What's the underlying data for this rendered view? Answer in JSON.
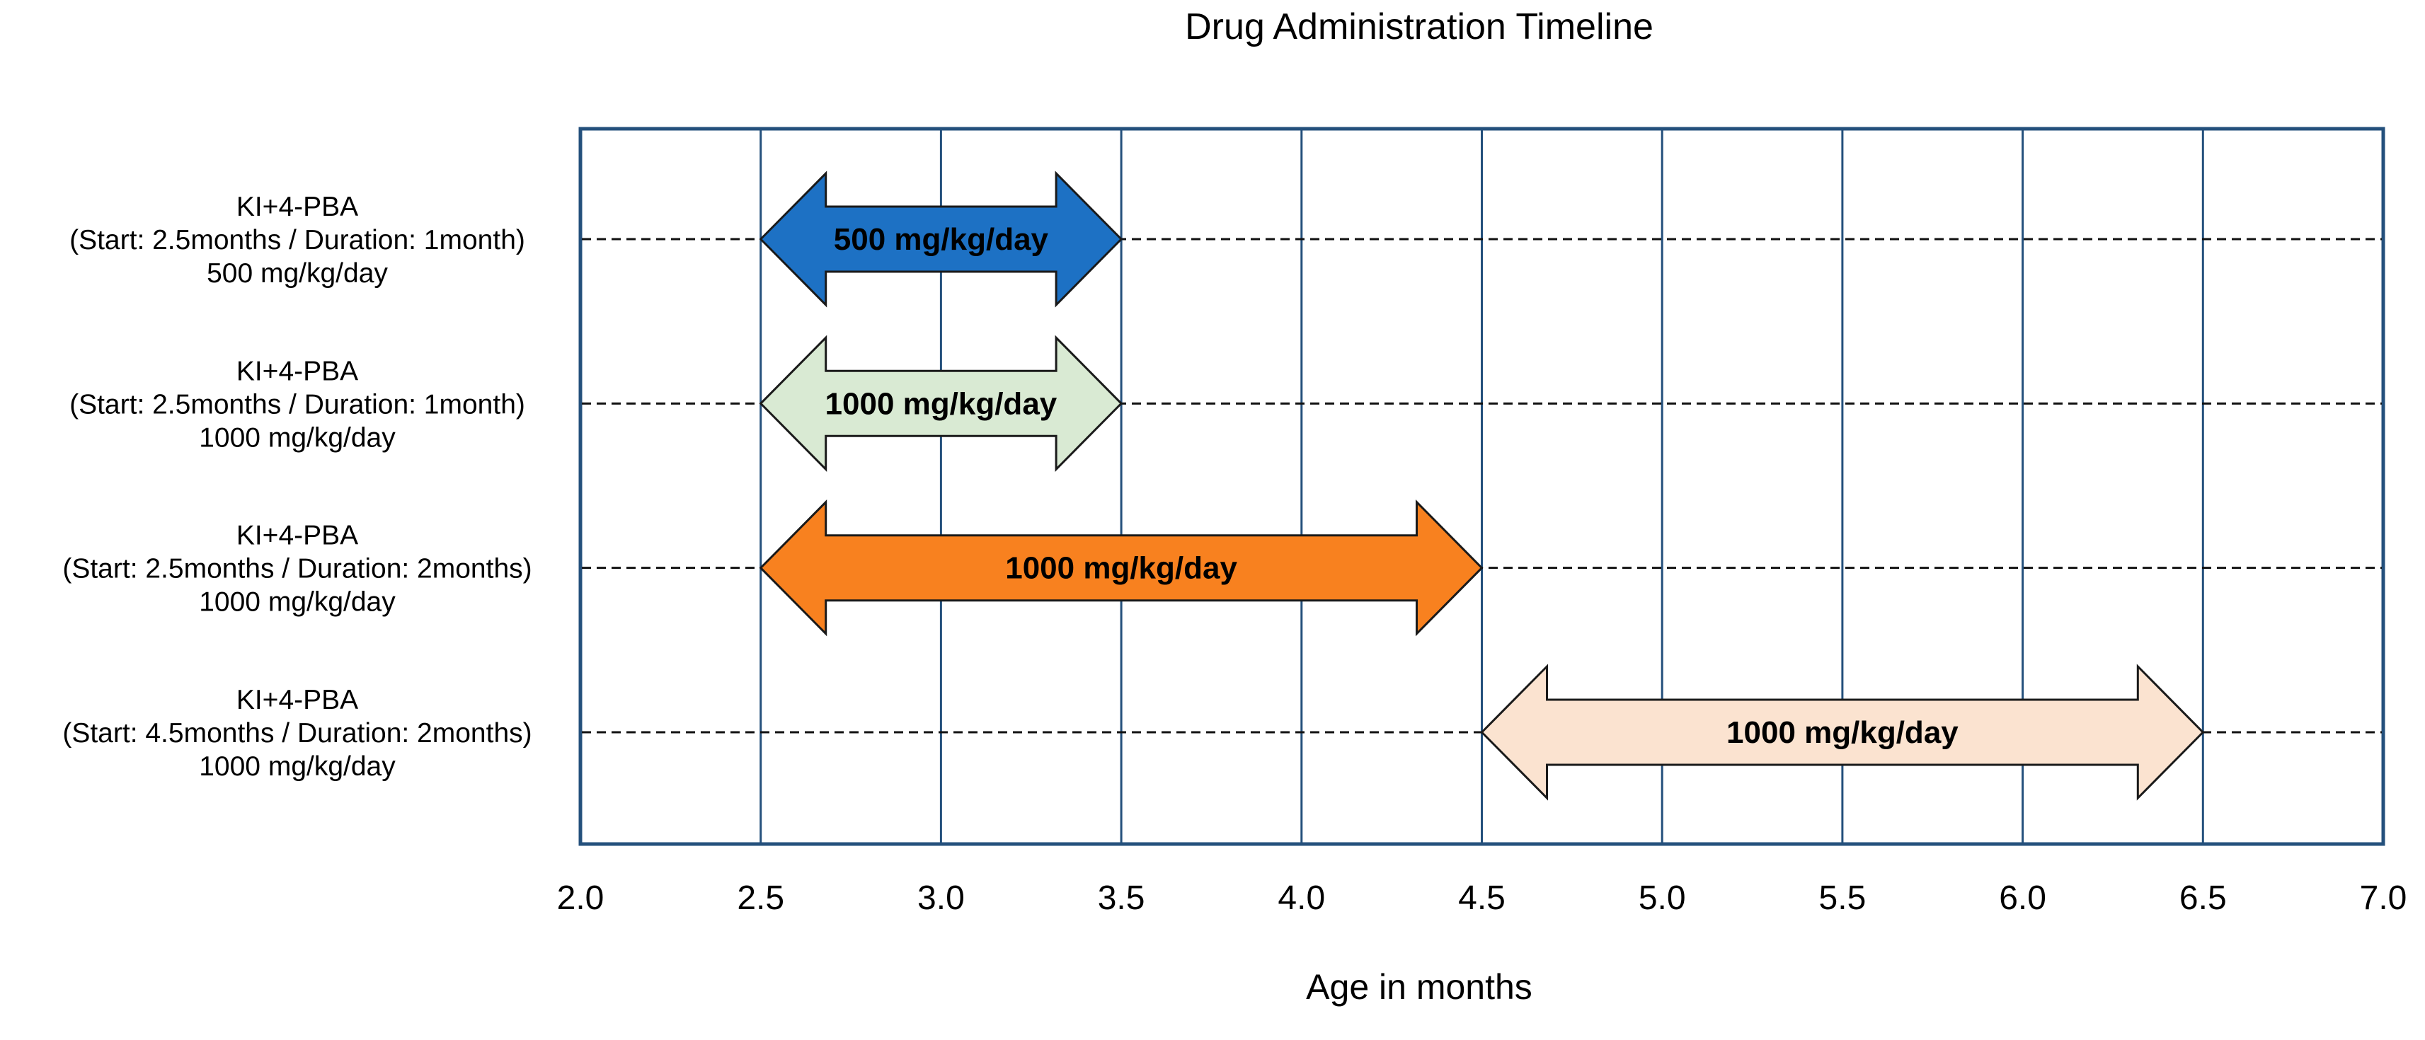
{
  "chart_data": {
    "type": "bar",
    "subtype": "double-arrow-timeline",
    "title": "Drug Administration Timeline",
    "xlabel": "Age in months",
    "xlim": [
      2.0,
      7.0
    ],
    "x_ticks": [
      2.0,
      2.5,
      3.0,
      3.5,
      4.0,
      4.5,
      5.0,
      5.5,
      6.0,
      6.5,
      7.0
    ],
    "x_tick_labels": [
      "2.0",
      "2.5",
      "3.0",
      "3.5",
      "4.0",
      "4.5",
      "5.0",
      "5.5",
      "6.0",
      "6.5",
      "7.0"
    ],
    "grid": true,
    "legend": false,
    "rows": [
      {
        "label_lines": [
          "KI+4-PBA",
          "(Start: 2.5months / Duration: 1month)",
          "500 mg/kg/day"
        ],
        "drug": "KI+4-PBA",
        "start_months": 2.5,
        "end_months": 3.5,
        "duration_months": 1,
        "dose": "500 mg/kg/day",
        "arrow_label": "500 mg/kg/day",
        "fill": "#1d71c4",
        "label_color": "#ffffff"
      },
      {
        "label_lines": [
          "KI+4-PBA",
          "(Start: 2.5months / Duration: 1month)",
          "1000 mg/kg/day"
        ],
        "drug": "KI+4-PBA",
        "start_months": 2.5,
        "end_months": 3.5,
        "duration_months": 1,
        "dose": "1000 mg/kg/day",
        "arrow_label": "1000 mg/kg/day",
        "fill": "#d9ead3",
        "label_color": "#000000"
      },
      {
        "label_lines": [
          "KI+4-PBA",
          "(Start: 2.5months / Duration: 2months)",
          "1000 mg/kg/day"
        ],
        "drug": "KI+4-PBA",
        "start_months": 2.5,
        "end_months": 4.5,
        "duration_months": 2,
        "dose": "1000 mg/kg/day",
        "arrow_label": "1000 mg/kg/day",
        "fill": "#f8811f",
        "label_color": "#000000"
      },
      {
        "label_lines": [
          "KI+4-PBA",
          "(Start: 4.5months / Duration: 2months)",
          "1000 mg/kg/day"
        ],
        "drug": "KI+4-PBA",
        "start_months": 4.5,
        "end_months": 6.5,
        "duration_months": 2,
        "dose": "1000 mg/kg/day",
        "arrow_label": "1000 mg/kg/day",
        "fill": "#fbe3d0",
        "label_color": "#000000"
      }
    ],
    "colors": {
      "grid": "#24507c",
      "border": "#24507c",
      "dashed_line": "#111111",
      "arrow_outline": "#1a1a1a",
      "text": "#000000"
    }
  }
}
